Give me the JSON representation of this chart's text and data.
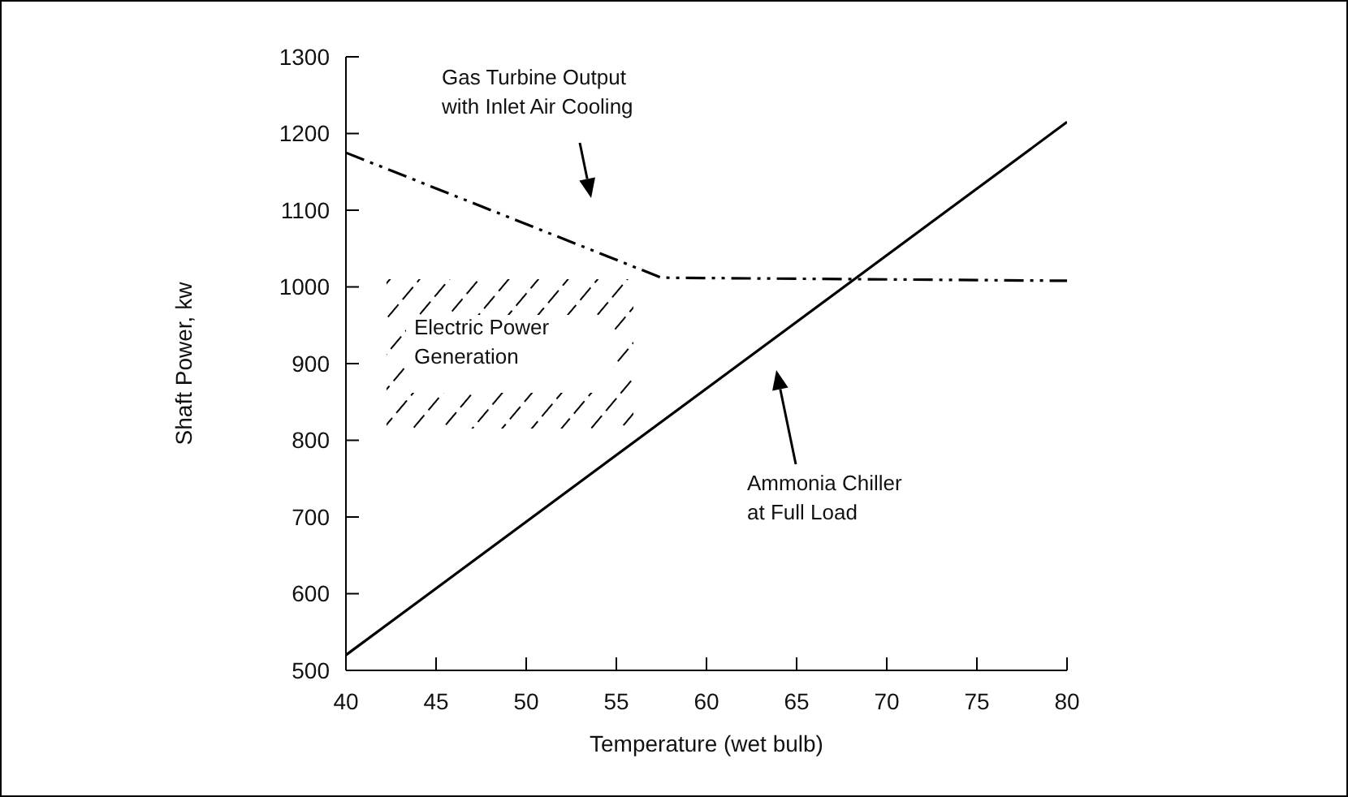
{
  "chart_data": {
    "type": "line",
    "xlabel": "Temperature (wet bulb)",
    "ylabel": "Shaft Power, kw",
    "xlim": [
      40,
      80
    ],
    "xticks": [
      40,
      45,
      50,
      55,
      60,
      65,
      70,
      75,
      80
    ],
    "ylim": [
      500,
      1300
    ],
    "yticks": [
      500,
      600,
      700,
      800,
      900,
      1000,
      1100,
      1200,
      1300
    ],
    "marker": "none",
    "series": [
      {
        "color": "#000000",
        "line_style": "dashdotdot",
        "x": [
          40,
          57.5,
          80
        ],
        "values": [
          1175,
          1012,
          1008
        ]
      },
      {
        "color": "#000000",
        "line_style": "solid",
        "x": [
          40,
          80
        ],
        "values": [
          520,
          1215
        ]
      }
    ],
    "annotations": [
      "Gas Turbine Output\nwith Inlet Air Cooling",
      "Ammonia Chiller\nat Full Load",
      "Electric Power\nGeneration"
    ]
  }
}
